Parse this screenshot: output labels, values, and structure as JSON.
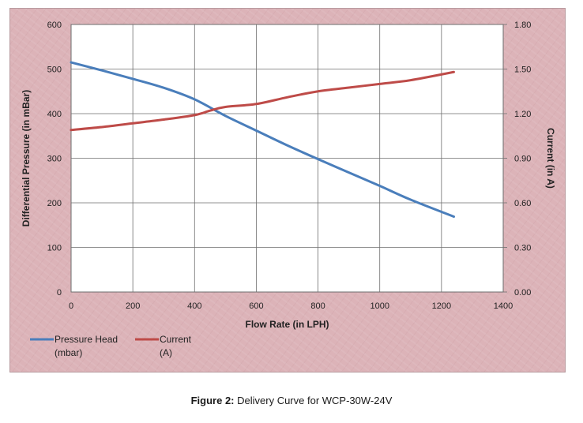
{
  "chart_data": {
    "type": "line",
    "title": "",
    "xlabel": "Flow Rate (in LPH)",
    "ylabel": "Differential Pressure (in mBar)",
    "y2label": "Current (in A)",
    "xlim": [
      0,
      1400
    ],
    "ylim": [
      0,
      600
    ],
    "y2lim": [
      0,
      1.8
    ],
    "x_ticks": [
      "0",
      "200",
      "400",
      "600",
      "800",
      "1000",
      "1200",
      "1400"
    ],
    "y_ticks": [
      "0",
      "100",
      "200",
      "300",
      "400",
      "500",
      "600"
    ],
    "y2_ticks": [
      "0.00",
      "0.30",
      "0.60",
      "0.90",
      "1.20",
      "1.50",
      "1.80"
    ],
    "grid": true,
    "legend_position": "bottom-left",
    "series": [
      {
        "name": "Pressure Head (mbar)",
        "legend_lines": [
          "Pressure Head",
          "(mbar)"
        ],
        "axis": "left",
        "color": "#4a7ebb",
        "x": [
          0,
          100,
          200,
          300,
          400,
          500,
          600,
          700,
          800,
          900,
          1000,
          1100,
          1240
        ],
        "y": [
          515,
          497,
          478,
          458,
          432,
          395,
          362,
          329,
          298,
          268,
          238,
          207,
          169
        ]
      },
      {
        "name": "Current (A)",
        "legend_lines": [
          "Current",
          "(A)"
        ],
        "axis": "right",
        "color": "#be4b48",
        "x": [
          0,
          100,
          200,
          300,
          400,
          450,
          500,
          600,
          700,
          800,
          900,
          1000,
          1100,
          1240
        ],
        "y": [
          1.09,
          1.11,
          1.135,
          1.16,
          1.19,
          1.22,
          1.245,
          1.265,
          1.31,
          1.35,
          1.375,
          1.4,
          1.425,
          1.48
        ]
      }
    ]
  },
  "caption": {
    "label": "Figure 2:",
    "text": " Delivery Curve for WCP-30W-24V"
  }
}
